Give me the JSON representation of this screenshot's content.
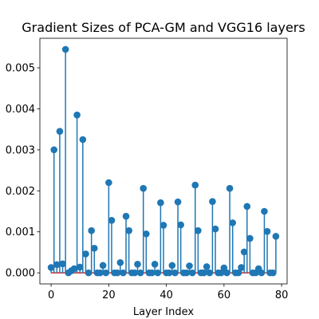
{
  "chart_data": {
    "type": "stem",
    "title": "Gradient Sizes of PCA-GM and VGG16 layers",
    "xlabel": "Layer Index",
    "ylabel": "",
    "xlim": [
      -3.9,
      81.9
    ],
    "ylim": [
      -0.00027,
      0.00572
    ],
    "xticks": [
      0,
      20,
      40,
      60,
      80
    ],
    "xtick_labels": [
      "0",
      "20",
      "40",
      "60",
      "80"
    ],
    "yticks": [
      0,
      0.001,
      0.002,
      0.003,
      0.004,
      0.005
    ],
    "ytick_labels": [
      "0.000",
      "0.001",
      "0.002",
      "0.003",
      "0.004",
      "0.005"
    ],
    "grid": false,
    "colors": {
      "stem": "#1f77b4",
      "marker": "#1f77b4",
      "baseline": "#d62728"
    },
    "x": [
      0,
      1,
      2,
      3,
      4,
      5,
      6,
      7,
      8,
      9,
      10,
      11,
      12,
      13,
      14,
      15,
      16,
      17,
      18,
      19,
      20,
      21,
      22,
      23,
      24,
      25,
      26,
      27,
      28,
      29,
      30,
      31,
      32,
      33,
      34,
      35,
      36,
      37,
      38,
      39,
      40,
      41,
      42,
      43,
      44,
      45,
      46,
      47,
      48,
      49,
      50,
      51,
      52,
      53,
      54,
      55,
      56,
      57,
      58,
      59,
      60,
      61,
      62,
      63,
      64,
      65,
      66,
      67,
      68,
      69,
      70,
      71,
      72,
      73,
      74,
      75,
      76,
      77,
      78
    ],
    "values": [
      0.00013,
      0.003,
      0.0002,
      0.00345,
      0.00022,
      0.00545,
      0.0,
      5e-05,
      0.0001,
      0.00385,
      0.00014,
      0.00325,
      0.00046,
      0.0,
      0.00103,
      0.0006,
      0.0,
      0.0,
      0.00018,
      0.0,
      0.0022,
      0.00128,
      0.0,
      0.0,
      0.00025,
      0.0,
      0.00138,
      0.00103,
      0.0,
      0.0,
      0.00021,
      0.0,
      0.00206,
      0.00095,
      0.0,
      0.0,
      0.00021,
      0.0,
      0.00171,
      0.00116,
      0.0,
      0.0,
      0.00018,
      0.0,
      0.00173,
      0.00117,
      0.0,
      0.0,
      0.00017,
      0.0,
      0.00214,
      0.00103,
      0.0,
      0.0,
      0.00015,
      0.0,
      0.00174,
      0.00107,
      0.0,
      0.0,
      0.00012,
      0.0,
      0.00206,
      0.00122,
      0.0,
      0.0,
      0.00013,
      0.00051,
      0.00162,
      0.00084,
      0.0,
      0.0,
      0.0001,
      0.0,
      0.0015,
      0.00101,
      0.0,
      0.0,
      0.00089
    ]
  }
}
